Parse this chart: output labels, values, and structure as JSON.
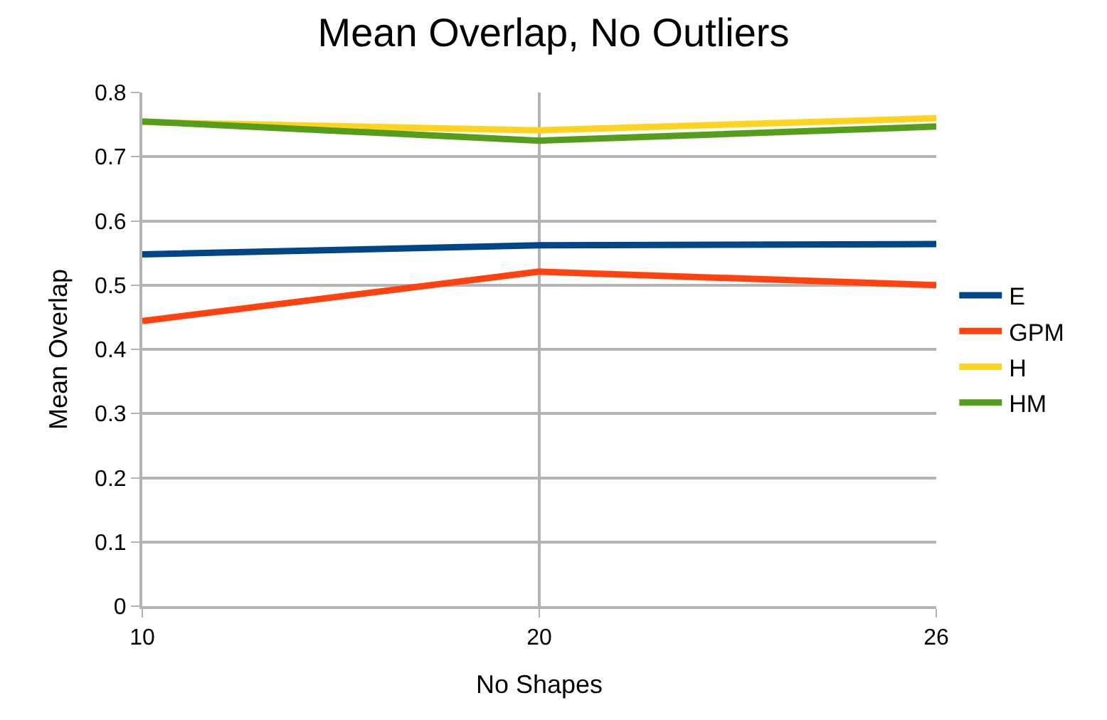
{
  "chart_data": {
    "type": "line",
    "title": "Mean Overlap, No Outliers",
    "xlabel": "No Shapes",
    "ylabel": "Mean Overlap",
    "categories": [
      "10",
      "20",
      "26"
    ],
    "ylim": [
      0,
      0.8
    ],
    "yticks": [
      0,
      0.1,
      0.2,
      0.3,
      0.4,
      0.5,
      0.6,
      0.7,
      0.8
    ],
    "grid": true,
    "legend": "right",
    "marker": "none",
    "line_style": "solid",
    "series": [
      {
        "name": "E",
        "color": "#004586",
        "values": [
          0.548,
          0.562,
          0.564
        ]
      },
      {
        "name": "GPM",
        "color": "#ff420e",
        "values": [
          0.444,
          0.521,
          0.5
        ]
      },
      {
        "name": "H",
        "color": "#ffd320",
        "values": [
          0.754,
          0.741,
          0.76
        ]
      },
      {
        "name": "HM",
        "color": "#579d1c",
        "values": [
          0.755,
          0.725,
          0.747
        ]
      }
    ]
  }
}
